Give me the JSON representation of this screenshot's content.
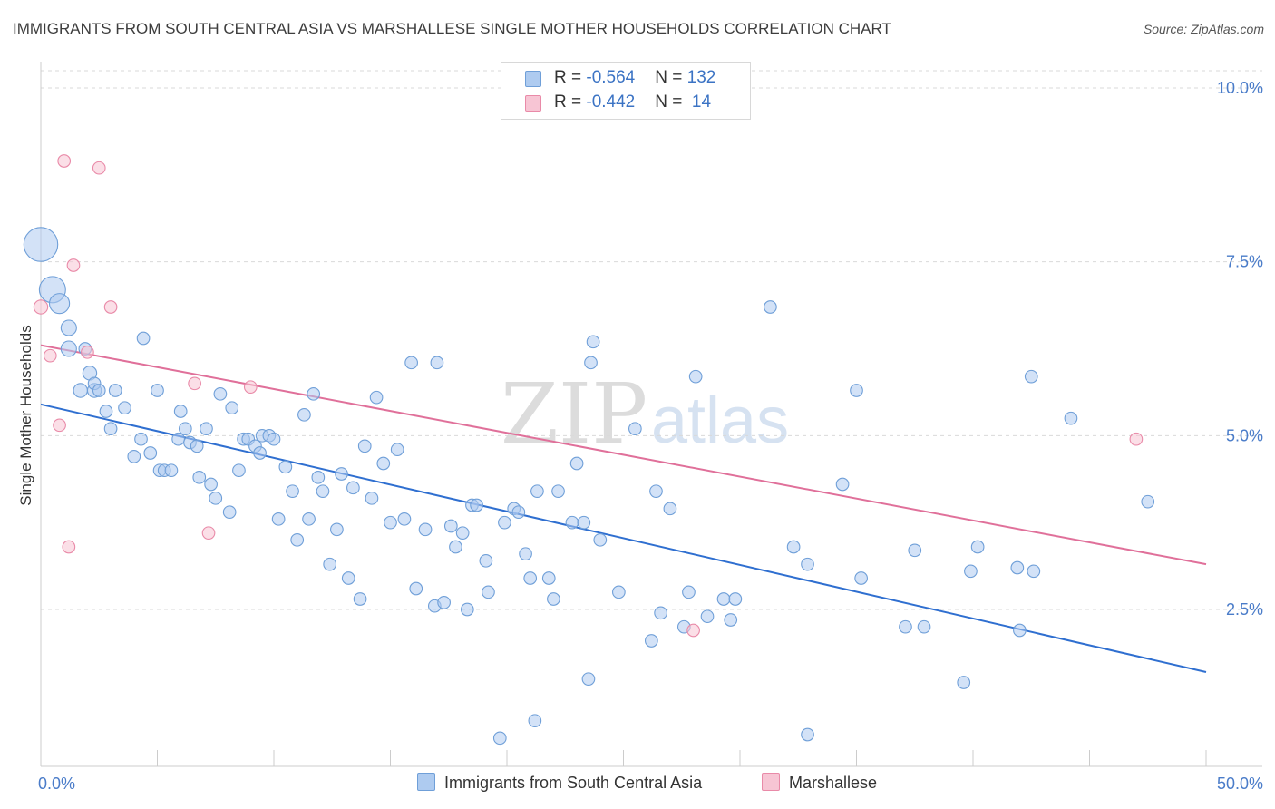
{
  "title": "IMMIGRANTS FROM SOUTH CENTRAL ASIA VS MARSHALLESE SINGLE MOTHER HOUSEHOLDS CORRELATION CHART",
  "source": "Source: ZipAtlas.com",
  "watermark": {
    "zip": "ZIP",
    "atlas": "atlas"
  },
  "legend": {
    "rows": [
      {
        "r_label": "R = ",
        "r_value": "-0.564",
        "n_label": "N = ",
        "n_value": "132",
        "color": "#aecbf0",
        "border": "#6f9fd8"
      },
      {
        "r_label": "R = ",
        "r_value": "-0.442",
        "n_label": "N = ",
        "n_value": " 14",
        "color": "#f7c5d4",
        "border": "#e98aa8"
      }
    ]
  },
  "bottom_legend": {
    "series1": "Immigrants from South Central Asia",
    "series2": "Marshallese"
  },
  "chart_data": {
    "type": "scatter",
    "title": "IMMIGRANTS FROM SOUTH CENTRAL ASIA VS MARSHALLESE SINGLE MOTHER HOUSEHOLDS CORRELATION CHART",
    "xlabel": "",
    "ylabel": "Single Mother Households",
    "xlim": [
      0,
      50
    ],
    "ylim": [
      0,
      10.5
    ],
    "x_tick_labels": [
      "0.0%",
      "50.0%"
    ],
    "y_tick_labels": [
      "2.5%",
      "5.0%",
      "7.5%",
      "10.0%"
    ],
    "y_ticks": [
      2.5,
      5.0,
      7.5,
      10.0
    ],
    "grid": "horizontal dashed",
    "legend_position": "top-center",
    "series": [
      {
        "name": "Immigrants from South Central Asia",
        "color": "#aecbf0",
        "stroke": "#6f9fd8",
        "trend": {
          "x": [
            0,
            50
          ],
          "y": [
            5.45,
            1.6
          ],
          "color": "#2f6fd0"
        },
        "points": [
          [
            0.0,
            7.75,
            2.2
          ],
          [
            0.5,
            7.1,
            1.7
          ],
          [
            0.8,
            6.9,
            1.3
          ],
          [
            1.2,
            6.55,
            1.0
          ],
          [
            1.2,
            6.25,
            1.0
          ],
          [
            1.9,
            6.25,
            0.8
          ],
          [
            1.7,
            5.65,
            0.9
          ],
          [
            2.1,
            5.9,
            0.9
          ],
          [
            2.3,
            5.65,
            0.9
          ],
          [
            2.3,
            5.75,
            0.8
          ],
          [
            2.5,
            5.65,
            0.8
          ],
          [
            2.8,
            5.35,
            0.8
          ],
          [
            3.2,
            5.65,
            0.8
          ],
          [
            3.0,
            5.1,
            0.8
          ],
          [
            3.6,
            5.4,
            0.8
          ],
          [
            4.4,
            6.4,
            0.8
          ],
          [
            4.0,
            4.7,
            0.8
          ],
          [
            4.3,
            4.95,
            0.8
          ],
          [
            4.7,
            4.75,
            0.8
          ],
          [
            5.0,
            5.65,
            0.8
          ],
          [
            5.1,
            4.5,
            0.8
          ],
          [
            5.3,
            4.5,
            0.8
          ],
          [
            5.6,
            4.5,
            0.8
          ],
          [
            5.9,
            4.95,
            0.8
          ],
          [
            6.0,
            5.35,
            0.8
          ],
          [
            6.2,
            5.1,
            0.8
          ],
          [
            6.4,
            4.9,
            0.8
          ],
          [
            6.7,
            4.85,
            0.8
          ],
          [
            6.8,
            4.4,
            0.8
          ],
          [
            7.1,
            5.1,
            0.8
          ],
          [
            7.3,
            4.3,
            0.8
          ],
          [
            7.5,
            4.1,
            0.8
          ],
          [
            7.7,
            5.6,
            0.8
          ],
          [
            8.1,
            3.9,
            0.8
          ],
          [
            8.2,
            5.4,
            0.8
          ],
          [
            8.5,
            4.5,
            0.8
          ],
          [
            8.7,
            4.95,
            0.8
          ],
          [
            8.9,
            4.95,
            0.8
          ],
          [
            9.2,
            4.85,
            0.8
          ],
          [
            9.4,
            4.75,
            0.8
          ],
          [
            9.5,
            5.0,
            0.8
          ],
          [
            9.8,
            5.0,
            0.8
          ],
          [
            10.0,
            4.95,
            0.8
          ],
          [
            10.2,
            3.8,
            0.8
          ],
          [
            10.5,
            4.55,
            0.8
          ],
          [
            10.8,
            4.2,
            0.8
          ],
          [
            11.0,
            3.5,
            0.8
          ],
          [
            11.3,
            5.3,
            0.8
          ],
          [
            11.5,
            3.8,
            0.8
          ],
          [
            11.7,
            5.6,
            0.8
          ],
          [
            11.9,
            4.4,
            0.8
          ],
          [
            12.1,
            4.2,
            0.8
          ],
          [
            12.4,
            3.15,
            0.8
          ],
          [
            12.7,
            3.65,
            0.8
          ],
          [
            12.9,
            4.45,
            0.8
          ],
          [
            13.2,
            2.95,
            0.8
          ],
          [
            13.4,
            4.25,
            0.8
          ],
          [
            13.7,
            2.65,
            0.8
          ],
          [
            13.9,
            4.85,
            0.8
          ],
          [
            14.2,
            4.1,
            0.8
          ],
          [
            14.4,
            5.55,
            0.8
          ],
          [
            14.7,
            4.6,
            0.8
          ],
          [
            15.0,
            3.75,
            0.8
          ],
          [
            15.3,
            4.8,
            0.8
          ],
          [
            15.6,
            3.8,
            0.8
          ],
          [
            15.9,
            6.05,
            0.8
          ],
          [
            16.1,
            2.8,
            0.8
          ],
          [
            16.5,
            3.65,
            0.8
          ],
          [
            16.9,
            2.55,
            0.8
          ],
          [
            17.0,
            6.05,
            0.8
          ],
          [
            17.3,
            2.6,
            0.8
          ],
          [
            17.6,
            3.7,
            0.8
          ],
          [
            17.8,
            3.4,
            0.8
          ],
          [
            18.1,
            3.6,
            0.8
          ],
          [
            18.3,
            2.5,
            0.8
          ],
          [
            18.5,
            4.0,
            0.8
          ],
          [
            18.7,
            4.0,
            0.8
          ],
          [
            19.1,
            3.2,
            0.8
          ],
          [
            19.2,
            2.75,
            0.8
          ],
          [
            19.7,
            0.65,
            0.8
          ],
          [
            19.9,
            3.75,
            0.8
          ],
          [
            20.3,
            3.95,
            0.8
          ],
          [
            20.5,
            3.9,
            0.8
          ],
          [
            20.8,
            3.3,
            0.8
          ],
          [
            21.0,
            2.95,
            0.8
          ],
          [
            21.2,
            0.9,
            0.8
          ],
          [
            21.3,
            4.2,
            0.8
          ],
          [
            21.8,
            2.95,
            0.8
          ],
          [
            22.0,
            2.65,
            0.8
          ],
          [
            22.2,
            4.2,
            0.8
          ],
          [
            22.8,
            3.75,
            0.8
          ],
          [
            23.0,
            4.6,
            0.8
          ],
          [
            23.3,
            3.75,
            0.8
          ],
          [
            23.5,
            1.5,
            0.8
          ],
          [
            23.7,
            6.35,
            0.8
          ],
          [
            23.6,
            6.05,
            0.8
          ],
          [
            24.0,
            3.5,
            0.8
          ],
          [
            24.8,
            2.75,
            0.8
          ],
          [
            25.5,
            5.1,
            0.8
          ],
          [
            26.2,
            2.05,
            0.8
          ],
          [
            26.4,
            4.2,
            0.8
          ],
          [
            26.6,
            2.45,
            0.8
          ],
          [
            27.0,
            3.95,
            0.8
          ],
          [
            27.6,
            2.25,
            0.8
          ],
          [
            27.8,
            2.75,
            0.8
          ],
          [
            28.1,
            5.85,
            0.8
          ],
          [
            28.6,
            2.4,
            0.8
          ],
          [
            29.3,
            2.65,
            0.8
          ],
          [
            29.6,
            2.35,
            0.8
          ],
          [
            29.8,
            2.65,
            0.8
          ],
          [
            31.3,
            6.85,
            0.8
          ],
          [
            32.3,
            3.4,
            0.8
          ],
          [
            32.9,
            3.15,
            0.8
          ],
          [
            32.9,
            0.7,
            0.8
          ],
          [
            34.4,
            4.3,
            0.8
          ],
          [
            35.0,
            5.65,
            0.8
          ],
          [
            35.2,
            2.95,
            0.8
          ],
          [
            37.1,
            2.25,
            0.8
          ],
          [
            37.5,
            3.35,
            0.8
          ],
          [
            37.9,
            2.25,
            0.8
          ],
          [
            39.6,
            1.45,
            0.8
          ],
          [
            39.9,
            3.05,
            0.8
          ],
          [
            40.2,
            3.4,
            0.8
          ],
          [
            41.9,
            3.1,
            0.8
          ],
          [
            42.0,
            2.2,
            0.8
          ],
          [
            42.6,
            3.05,
            0.8
          ],
          [
            42.5,
            5.85,
            0.8
          ],
          [
            44.2,
            5.25,
            0.8
          ],
          [
            47.5,
            4.05,
            0.8
          ]
        ]
      },
      {
        "name": "Marshallese",
        "color": "#f7c5d4",
        "stroke": "#e98aa8",
        "trend": {
          "x": [
            0,
            50
          ],
          "y": [
            6.3,
            3.15
          ],
          "color": "#e0709a"
        },
        "points": [
          [
            0.0,
            6.85,
            0.9
          ],
          [
            0.4,
            6.15,
            0.8
          ],
          [
            0.8,
            5.15,
            0.8
          ],
          [
            1.4,
            7.45,
            0.8
          ],
          [
            1.0,
            8.95,
            0.8
          ],
          [
            2.0,
            6.2,
            0.8
          ],
          [
            1.2,
            3.4,
            0.8
          ],
          [
            2.5,
            8.85,
            0.8
          ],
          [
            3.0,
            6.85,
            0.8
          ],
          [
            6.6,
            5.75,
            0.8
          ],
          [
            7.2,
            3.6,
            0.8
          ],
          [
            9.0,
            5.7,
            0.8
          ],
          [
            28.0,
            2.2,
            0.8
          ],
          [
            47.0,
            4.95,
            0.8
          ]
        ]
      }
    ]
  }
}
